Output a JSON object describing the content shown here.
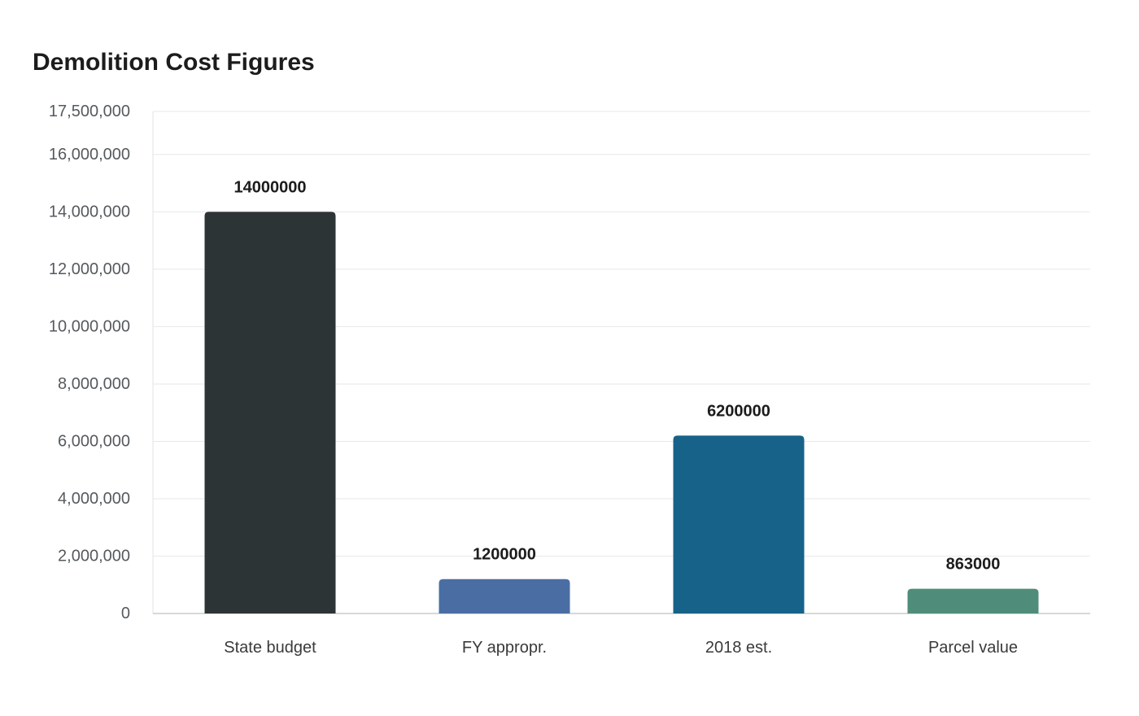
{
  "chart_data": {
    "type": "bar",
    "title": "Demolition Cost Figures",
    "xlabel": "",
    "ylabel": "",
    "categories": [
      "State budget",
      "FY appropr.",
      "2018 est.",
      "Parcel value"
    ],
    "values": [
      14000000,
      1200000,
      6200000,
      863000
    ],
    "data_labels": [
      "14000000",
      "1200000",
      "6200000",
      "863000"
    ],
    "bar_colors": [
      "#2d3436",
      "#4a6ea3",
      "#176289",
      "#4f8d7a"
    ],
    "ylim": [
      0,
      17500000
    ],
    "y_ticks": [
      0,
      2000000,
      4000000,
      6000000,
      8000000,
      10000000,
      12000000,
      14000000,
      16000000,
      17500000
    ],
    "y_tick_labels": [
      "0",
      "2,000,000",
      "4,000,000",
      "6,000,000",
      "8,000,000",
      "10,000,000",
      "12,000,000",
      "14,000,000",
      "16,000,000",
      "17,500,000"
    ],
    "grid": true,
    "legend": "none"
  }
}
